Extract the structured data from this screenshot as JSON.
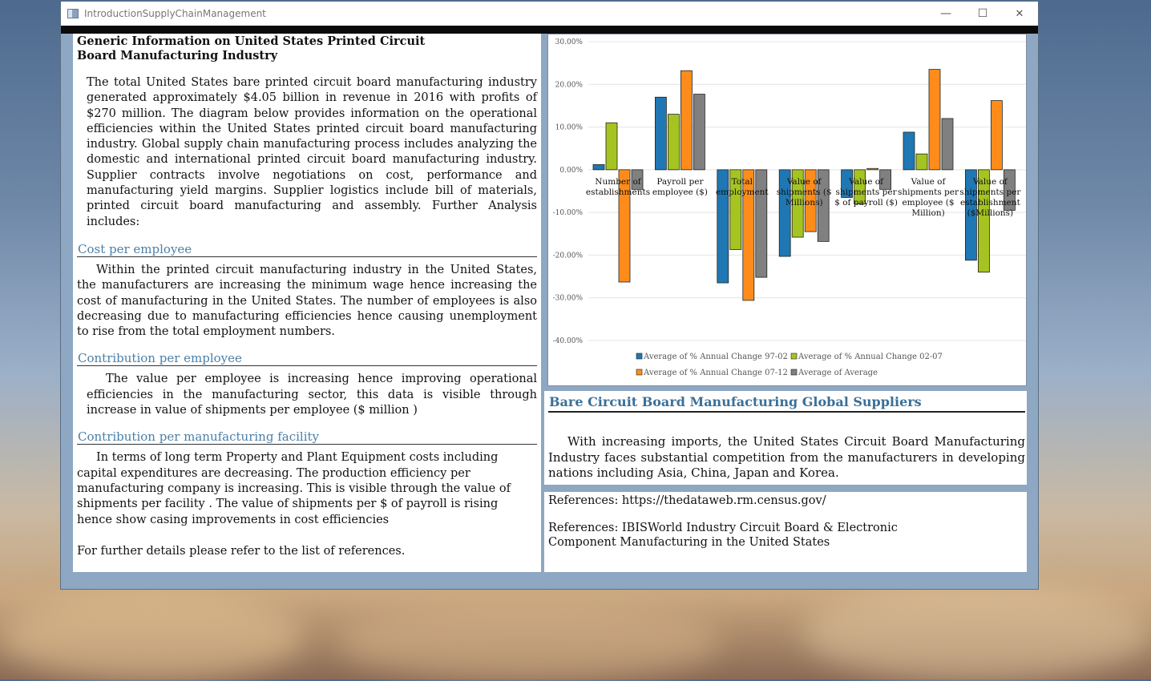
{
  "window": {
    "title": "IntroductionSupplyChainManagement",
    "minimize": "—",
    "maximize": "☐",
    "close": "✕"
  },
  "left": {
    "heading": "Generic Information on United States Printed Circuit Board Manufacturing Industry",
    "intro": "The total United States bare printed circuit board manufacturing industry generated approximately $4.05 billion in revenue in 2016 with profits of $270 million. The diagram below provides information on the operational efficiencies within the United States printed circuit board manufacturing industry.  Global supply chain manufacturing process includes analyzing the domestic and international printed circuit board manufacturing industry. Supplier contracts involve negotiations on cost, performance and manufacturing yield margins. Supplier logistics include bill of materials, printed circuit board manufacturing and assembly.  Further Analysis includes:",
    "sections": [
      {
        "title": "Cost per employee",
        "body": "Within the printed circuit manufacturing industry in the United States, the manufacturers are increasing the minimum wage hence increasing the cost of manufacturing in the United States.  The number of employees is also decreasing due to manufacturing efficiencies hence causing unemployment to rise from the total employment numbers."
      },
      {
        "title": "Contribution  per employee",
        "body": "The value per employee is increasing hence improving operational efficiencies in the manufacturing sector, this data is visible through increase in value of shipments per employee ($ million )"
      },
      {
        "title": "Contribution  per manufacturing facility",
        "body": "In terms of long term Property and Plant Equipment costs including capital expenditures are decreasing.  The production efficiency per manufacturing company is increasing. This is visible through the value of shipments per facility .  The value of shipments per $ of payroll is rising hence show casing improvements in cost efficiencies"
      }
    ],
    "closing": "For further details please refer to the list of references."
  },
  "suppliers": {
    "title": "Bare Circuit Board Manufacturing Global Suppliers",
    "body": "With increasing imports, the United States Circuit Board Manufacturing Industry faces substantial competition from the manufacturers in developing nations including Asia, China, Japan and Korea."
  },
  "references": {
    "ref1": "References:  https://thedataweb.rm.census.gov/",
    "ref2": "References:  IBISWorld Industry Circuit Board & Electronic Component Manufacturing in the United States"
  },
  "chart_data": {
    "type": "bar",
    "categories": [
      [
        "Number of",
        "establishments"
      ],
      [
        "Payroll per",
        "employee ($)"
      ],
      [
        "Total",
        "employment"
      ],
      [
        "Value of",
        "shipments ($",
        "Millions)"
      ],
      [
        "Value of",
        "shipments per",
        "$ of payroll ($)"
      ],
      [
        "Value of",
        "shipments per",
        "employee ($",
        "Million)"
      ],
      [
        "Value of",
        "shipments per",
        "establishment",
        "($Millions)"
      ]
    ],
    "series": [
      {
        "name": "Average of % Annual Change 97-02",
        "color": "#1f77b4",
        "values": [
          1.2,
          17.0,
          -26.5,
          -20.3,
          -6.5,
          8.8,
          -21.2
        ]
      },
      {
        "name": "Average of % Annual Change 02-07",
        "color": "#a5c422",
        "values": [
          11.0,
          13.0,
          -18.7,
          -15.8,
          -8.0,
          3.7,
          -24.0
        ]
      },
      {
        "name": "Average of % Annual Change 07-12",
        "color": "#ff8c1a",
        "values": [
          -26.3,
          23.2,
          -30.6,
          -14.5,
          0.3,
          23.5,
          16.2
        ]
      },
      {
        "name": "Average of Average",
        "color": "#808080",
        "values": [
          -4.6,
          17.7,
          -25.2,
          -16.8,
          -4.6,
          12.0,
          -9.5
        ]
      }
    ],
    "yticks": [
      "30.00%",
      "20.00%",
      "10.00%",
      "0.00%",
      "-10.00%",
      "-20.00%",
      "-30.00%",
      "-40.00%"
    ],
    "ylim": [
      -40,
      30
    ],
    "legend": "bottom",
    "grid": true
  }
}
